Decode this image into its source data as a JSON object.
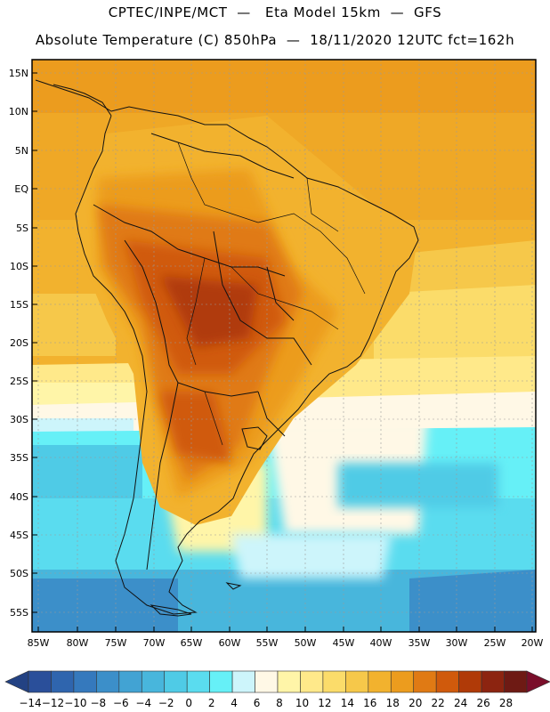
{
  "header": {
    "line1": "CPTEC/INPE/MCT  —   Eta Model 15km  —  GFS",
    "line2": "Absolute Temperature (C) 850hPa  —  18/11/2020 12UTC fct=162h"
  },
  "map": {
    "lat_labels": [
      "15N",
      "10N",
      "5N",
      "EQ",
      "5S",
      "10S",
      "15S",
      "20S",
      "25S",
      "30S",
      "35S",
      "40S",
      "45S",
      "50S",
      "55S"
    ],
    "lon_labels": [
      "85W",
      "80W",
      "75W",
      "70W",
      "65W",
      "60W",
      "55W",
      "50W",
      "45W",
      "40W",
      "35W",
      "30W",
      "25W",
      "20W"
    ]
  },
  "colorbar": {
    "labels": [
      "-14",
      "-12",
      "-10",
      "-8",
      "-6",
      "-4",
      "-2",
      "0",
      "2",
      "4",
      "6",
      "8",
      "10",
      "12",
      "14",
      "16",
      "18",
      "20",
      "22",
      "24",
      "26",
      "28"
    ],
    "colors": [
      "#2a4f9a",
      "#2f65ae",
      "#3579bd",
      "#3c8fc9",
      "#42a3d3",
      "#48b6dc",
      "#4fcbe6",
      "#5adcef",
      "#66f0f7",
      "#cdf5fb",
      "#fff8e6",
      "#fff5a8",
      "#ffe98a",
      "#fbdc6a",
      "#f6c84a",
      "#f2b22e",
      "#ec9c1e",
      "#e07a14",
      "#d05a0c",
      "#b03a08",
      "#8c2410",
      "#6e1a14"
    ],
    "under_color": "#234283",
    "over_color": "#7a0e2a"
  }
}
